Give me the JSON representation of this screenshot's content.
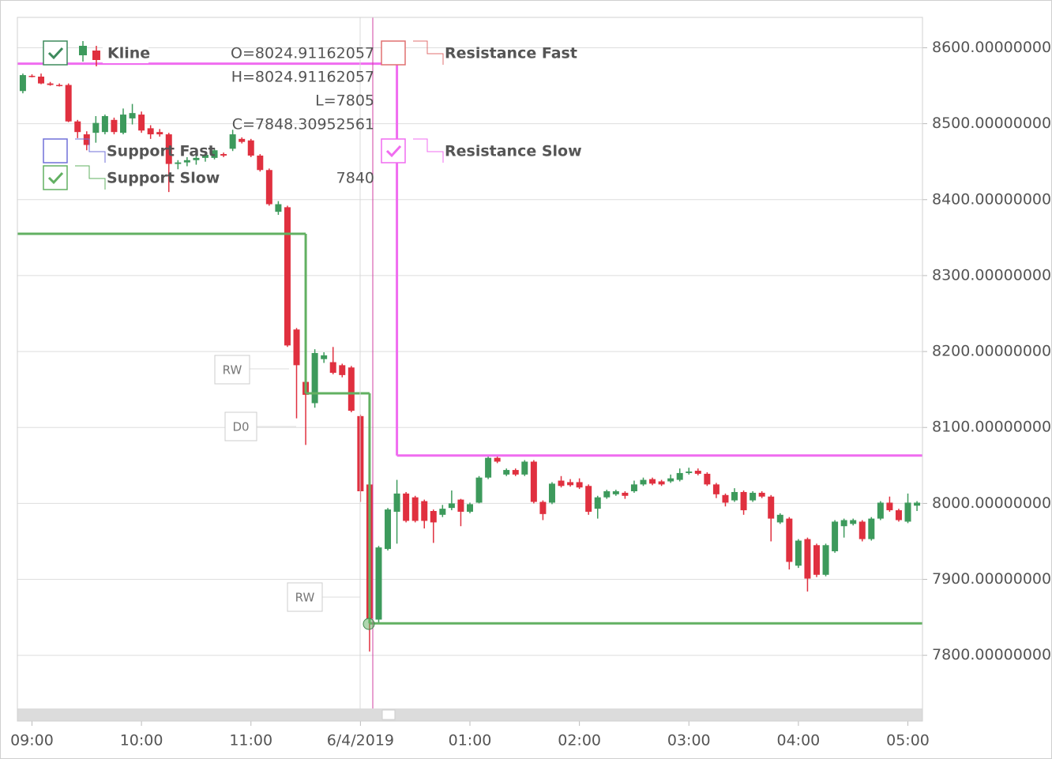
{
  "chart_data": {
    "type": "candlestick",
    "x": [
      -5,
      0,
      5,
      10,
      15,
      20,
      25,
      30,
      35,
      40,
      45,
      50,
      55,
      60,
      65,
      70,
      75,
      80,
      85,
      90,
      95,
      100,
      105,
      110,
      115,
      120,
      125,
      130,
      135,
      140,
      145,
      150,
      155,
      160,
      165,
      170,
      175,
      180,
      185,
      190,
      195,
      200,
      205,
      210,
      215,
      220,
      225,
      230,
      235,
      240,
      245,
      250,
      255,
      260,
      265,
      270,
      275,
      280,
      285,
      290,
      295,
      300,
      305,
      310,
      315,
      320,
      325,
      330,
      335,
      340,
      345,
      350,
      355,
      360,
      365,
      370,
      375,
      380,
      385,
      390,
      395,
      400,
      405,
      410,
      415,
      420,
      425,
      430,
      435,
      440,
      445,
      450,
      455,
      460,
      465,
      470,
      475,
      480,
      485
    ],
    "open": [
      8543,
      8563,
      8562,
      8553,
      8551,
      8551,
      8503,
      8486,
      8488,
      8489,
      8505,
      8488,
      8507,
      8512,
      8494,
      8489,
      8486,
      8447,
      8449,
      8452,
      8455,
      8455,
      8460,
      8467,
      8480,
      8478,
      8458,
      8439,
      8384,
      8390,
      8229,
      8160,
      8132,
      8190,
      8186,
      8182,
      8179,
      8115,
      8024.91162057,
      7847,
      7940,
      7989,
      8013,
      8008,
      8003,
      7990,
      7985,
      7994,
      8005,
      7989,
      8001,
      8034,
      8060,
      8038,
      8044,
      8038,
      8055,
      8002,
      8001,
      8030,
      8028,
      8028,
      8023,
      7993,
      8008,
      8012,
      8014,
      8016,
      8025,
      8032,
      8029,
      8029,
      8031,
      8040,
      8043,
      8039,
      8025,
      8011,
      8004,
      8015,
      8004,
      8014,
      8009,
      7975,
      7980,
      7918,
      7953,
      7945,
      7906,
      7937,
      7970,
      7973,
      7976,
      7953,
      7980,
      8001,
      7991,
      7976,
      7997
    ],
    "high": [
      8566,
      8565,
      8566,
      8555,
      8553,
      8553,
      8505,
      8490,
      8510,
      8512,
      8508,
      8520,
      8526,
      8516,
      8498,
      8493,
      8488,
      8452,
      8456,
      8458,
      8462,
      8467,
      8462,
      8492,
      8482,
      8480,
      8460,
      8441,
      8398,
      8392,
      8231,
      8163,
      8203,
      8199,
      8206,
      8184,
      8181,
      8117,
      8024.91162057,
      7944,
      7994,
      8031,
      8015,
      8010,
      8005,
      7992,
      7998,
      8017,
      8006,
      8001,
      8036,
      8062,
      8062,
      8046,
      8046,
      8057,
      8057,
      8004,
      8028,
      8036,
      8032,
      8033,
      8025,
      8010,
      8018,
      8018,
      8016,
      8030,
      8034,
      8034,
      8031,
      8038,
      8046,
      8047,
      8046,
      8041,
      8027,
      8013,
      8020,
      8017,
      8016,
      8016,
      8011,
      7987,
      7982,
      7953,
      7955,
      7947,
      7947,
      7978,
      7980,
      7980,
      7978,
      7982,
      8003,
      8009,
      7993,
      8013,
      8003
    ],
    "low": [
      8540,
      8561,
      8552,
      8550,
      8549,
      8502,
      8481,
      8465,
      8475,
      8486,
      8486,
      8486,
      8499,
      8488,
      8480,
      8483,
      8410,
      8440,
      8444,
      8446,
      8450,
      8453,
      8456,
      8464,
      8474,
      8456,
      8437,
      8392,
      8380,
      8206,
      8112,
      8077,
      8126,
      8185,
      8170,
      8166,
      8120,
      8002,
      7805,
      7842,
      7938,
      7947,
      7975,
      7975,
      7967,
      7948,
      7982,
      7991,
      7970,
      7987,
      8000,
      8032,
      8053,
      8036,
      8036,
      8036,
      8000,
      7978,
      7999,
      8021,
      8022,
      8019,
      7985,
      7980,
      8006,
      8010,
      8006,
      8014,
      8023,
      8024,
      8023,
      8027,
      8029,
      8038,
      8037,
      8023,
      8007,
      7996,
      8002,
      7985,
      8002,
      8007,
      7950,
      7973,
      7913,
      7915,
      7884,
      7903,
      7904,
      7935,
      7955,
      7971,
      7950,
      7951,
      7978,
      7989,
      7976,
      7974,
      7990
    ],
    "close": [
      8564,
      8562,
      8553,
      8551,
      8550,
      8503,
      8489,
      8472,
      8501,
      8510,
      8489,
      8512,
      8514,
      8491,
      8486,
      8486,
      8447,
      8449,
      8452,
      8455,
      8459,
      8465,
      8458,
      8486,
      8476,
      8458,
      8439,
      8394,
      8394,
      8208,
      8182,
      8143,
      8198,
      8195,
      8172,
      8169,
      8122,
      8016,
      7848.30952561,
      7942,
      7992,
      8013,
      7977,
      7977,
      7977,
      7975,
      7993,
      8000,
      7989,
      7999,
      8034,
      8060,
      8055,
      8044,
      8038,
      8055,
      8002,
      7986,
      8026,
      8023,
      8024,
      8021,
      7989,
      8008,
      8016,
      8016,
      8010,
      8025,
      8031,
      8026,
      8025,
      8033,
      8040,
      8042,
      8039,
      8025,
      8012,
      8001,
      8015,
      7991,
      8014,
      8009,
      7980,
      7985,
      7923,
      7951,
      7901,
      7906,
      7945,
      7976,
      7978,
      7978,
      7953,
      7980,
      8001,
      7991,
      7978,
      8001,
      8001
    ],
    "up_color": "#3d9a5c",
    "down_color": "#e0303f",
    "xlim": [
      -8,
      488
    ],
    "ylim": [
      7730,
      8640
    ],
    "xticks": [
      {
        "value": 0,
        "label": "09:00"
      },
      {
        "value": 60,
        "label": "10:00"
      },
      {
        "value": 120,
        "label": "11:00"
      },
      {
        "value": 180,
        "label": "6/4/2019"
      },
      {
        "value": 240,
        "label": "01:00"
      },
      {
        "value": 300,
        "label": "02:00"
      },
      {
        "value": 360,
        "label": "03:00"
      },
      {
        "value": 420,
        "label": "04:00"
      },
      {
        "value": 480,
        "label": "05:00"
      }
    ],
    "yticks": [
      {
        "value": 7800,
        "label": "7800.00000000"
      },
      {
        "value": 7900,
        "label": "7900.00000000"
      },
      {
        "value": 8000,
        "label": "8000.00000000"
      },
      {
        "value": 8100,
        "label": "8100.00000000"
      },
      {
        "value": 8200,
        "label": "8200.00000000"
      },
      {
        "value": 8300,
        "label": "8300.00000000"
      },
      {
        "value": 8400,
        "label": "8400.00000000"
      },
      {
        "value": 8500,
        "label": "8500.00000000"
      },
      {
        "value": 8600,
        "label": "8600.00000000"
      }
    ],
    "grid": true,
    "kline_legend": {
      "name": "Kline",
      "checked": true
    },
    "indicators": [
      {
        "name": "Support Fast",
        "color": "#7070d8",
        "checked": false
      },
      {
        "name": "Support Slow",
        "color": "#62b062",
        "checked": true,
        "x": [
          -10,
          150,
          185
        ],
        "values": [
          8355,
          8145,
          7842
        ]
      },
      {
        "name": "Resistance Fast",
        "color": "#e07070",
        "checked": false
      },
      {
        "name": "Resistance Slow",
        "color": "#f06cf0",
        "checked": true,
        "x": [
          -10,
          200
        ],
        "values": [
          8579,
          8063
        ]
      }
    ],
    "readout": [
      "O=8024.91162057",
      "H=8024.91162057",
      "L=7805",
      "C=7848.30952561"
    ],
    "crosshair_value": "7840",
    "annotations": [
      "RW",
      "D0",
      "RW"
    ]
  }
}
